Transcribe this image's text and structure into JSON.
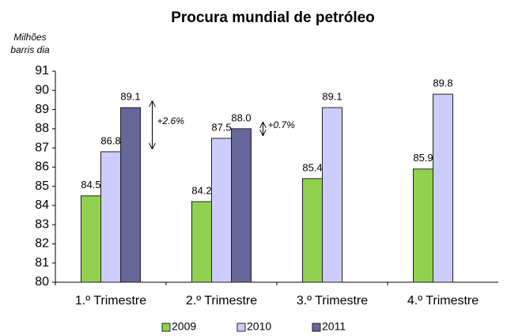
{
  "chart_data": {
    "type": "bar",
    "title": "Procura mundial de petróleo",
    "y_label": [
      "Milhões",
      "barris dia"
    ],
    "categories": [
      "1.º Trimestre",
      "2.º Trimestre",
      "3.º Trimestre",
      "4.º Trimestre"
    ],
    "series": [
      {
        "name": "2009",
        "color": "#92d050",
        "values": [
          84.5,
          84.2,
          85.4,
          85.9
        ],
        "value_labels": [
          "84.5",
          "84.2",
          "85.4",
          "85.9"
        ]
      },
      {
        "name": "2010",
        "color": "#ccccff",
        "values": [
          86.8,
          87.5,
          89.1,
          89.8
        ],
        "value_labels": [
          "86.8",
          "87.5",
          "89.1",
          "89.8"
        ]
      },
      {
        "name": "2011",
        "color": "#666699",
        "values": [
          89.1,
          88.0,
          null,
          null
        ],
        "value_labels": [
          "89.1",
          "88.0",
          null,
          null
        ]
      }
    ],
    "annotations": [
      "+2.6%",
      "+0.7%"
    ],
    "ylim": [
      80,
      91
    ],
    "yticks": [
      80,
      81,
      82,
      83,
      84,
      85,
      86,
      87,
      88,
      89,
      90,
      91
    ],
    "grid": false,
    "legend": "bottom"
  }
}
